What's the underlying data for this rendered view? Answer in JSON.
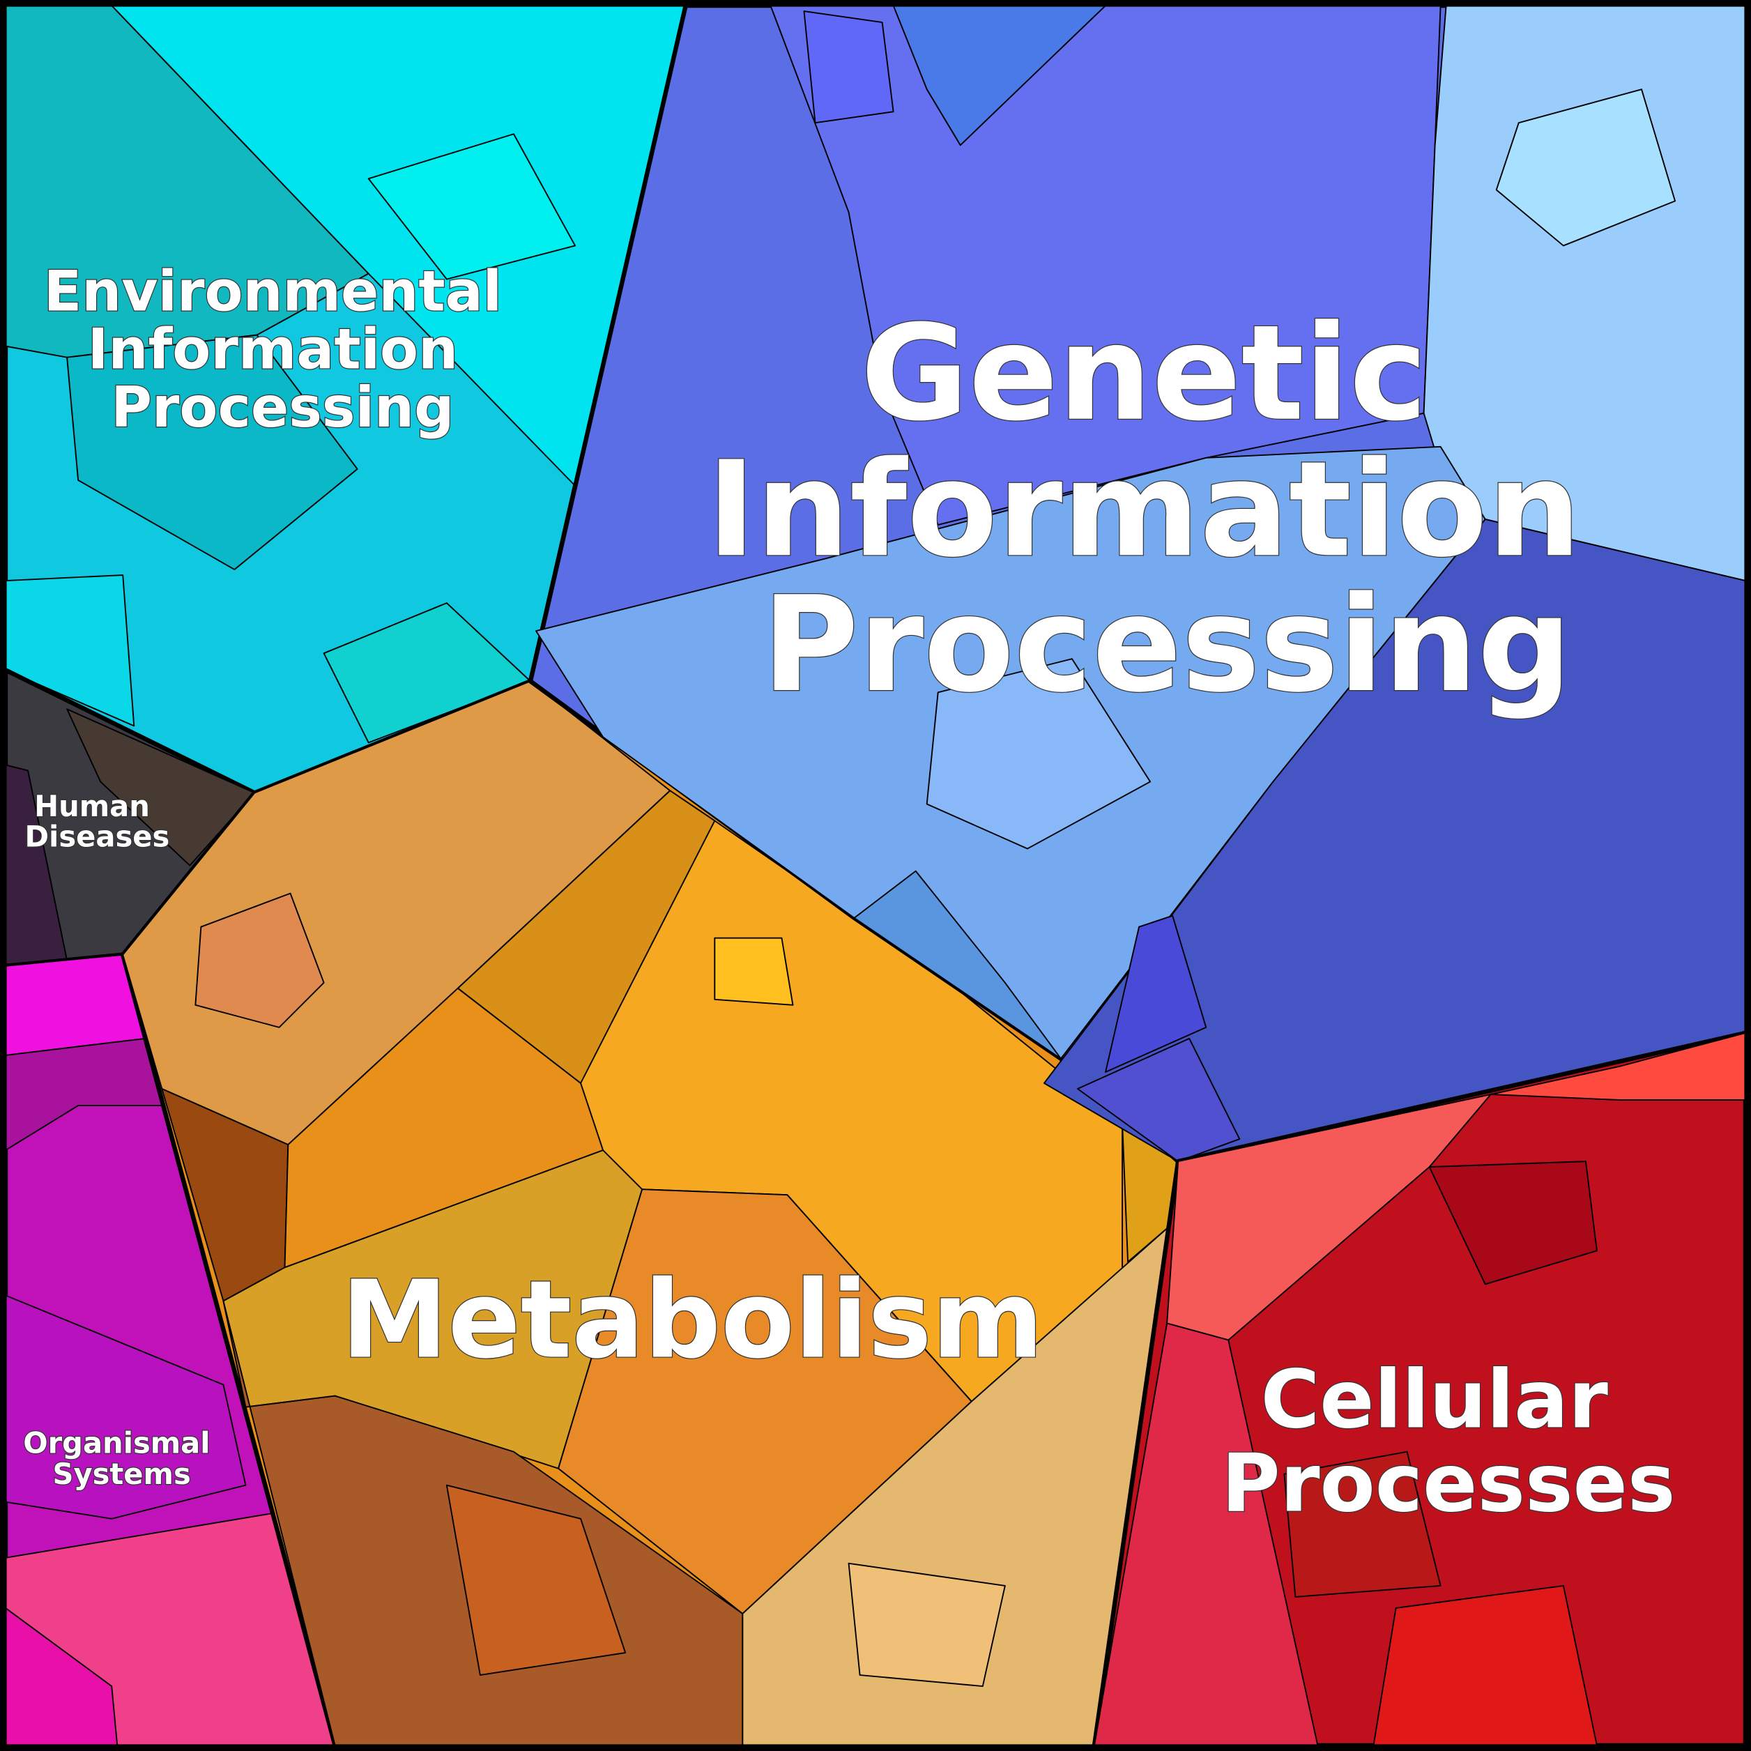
{
  "categories": [
    {
      "key": "genetic",
      "label_lines": [
        "Genetic",
        "Information",
        "Processing"
      ],
      "color": "#5b6ee6"
    },
    {
      "key": "environmental",
      "label_lines": [
        "Environmental",
        "Information",
        "Processing"
      ],
      "color": "#10c8e0"
    },
    {
      "key": "metabolism",
      "label_lines": [
        "Metabolism"
      ],
      "color": "#e8901a"
    },
    {
      "key": "cellular",
      "label_lines": [
        "Cellular",
        "Processes"
      ],
      "color": "#c0101e"
    },
    {
      "key": "human",
      "label_lines": [
        "Human",
        "Diseases"
      ],
      "color": "#3a3a40"
    },
    {
      "key": "organismal",
      "label_lines": [
        "Organismal",
        "Systems"
      ],
      "color": "#c012b8"
    }
  ]
}
